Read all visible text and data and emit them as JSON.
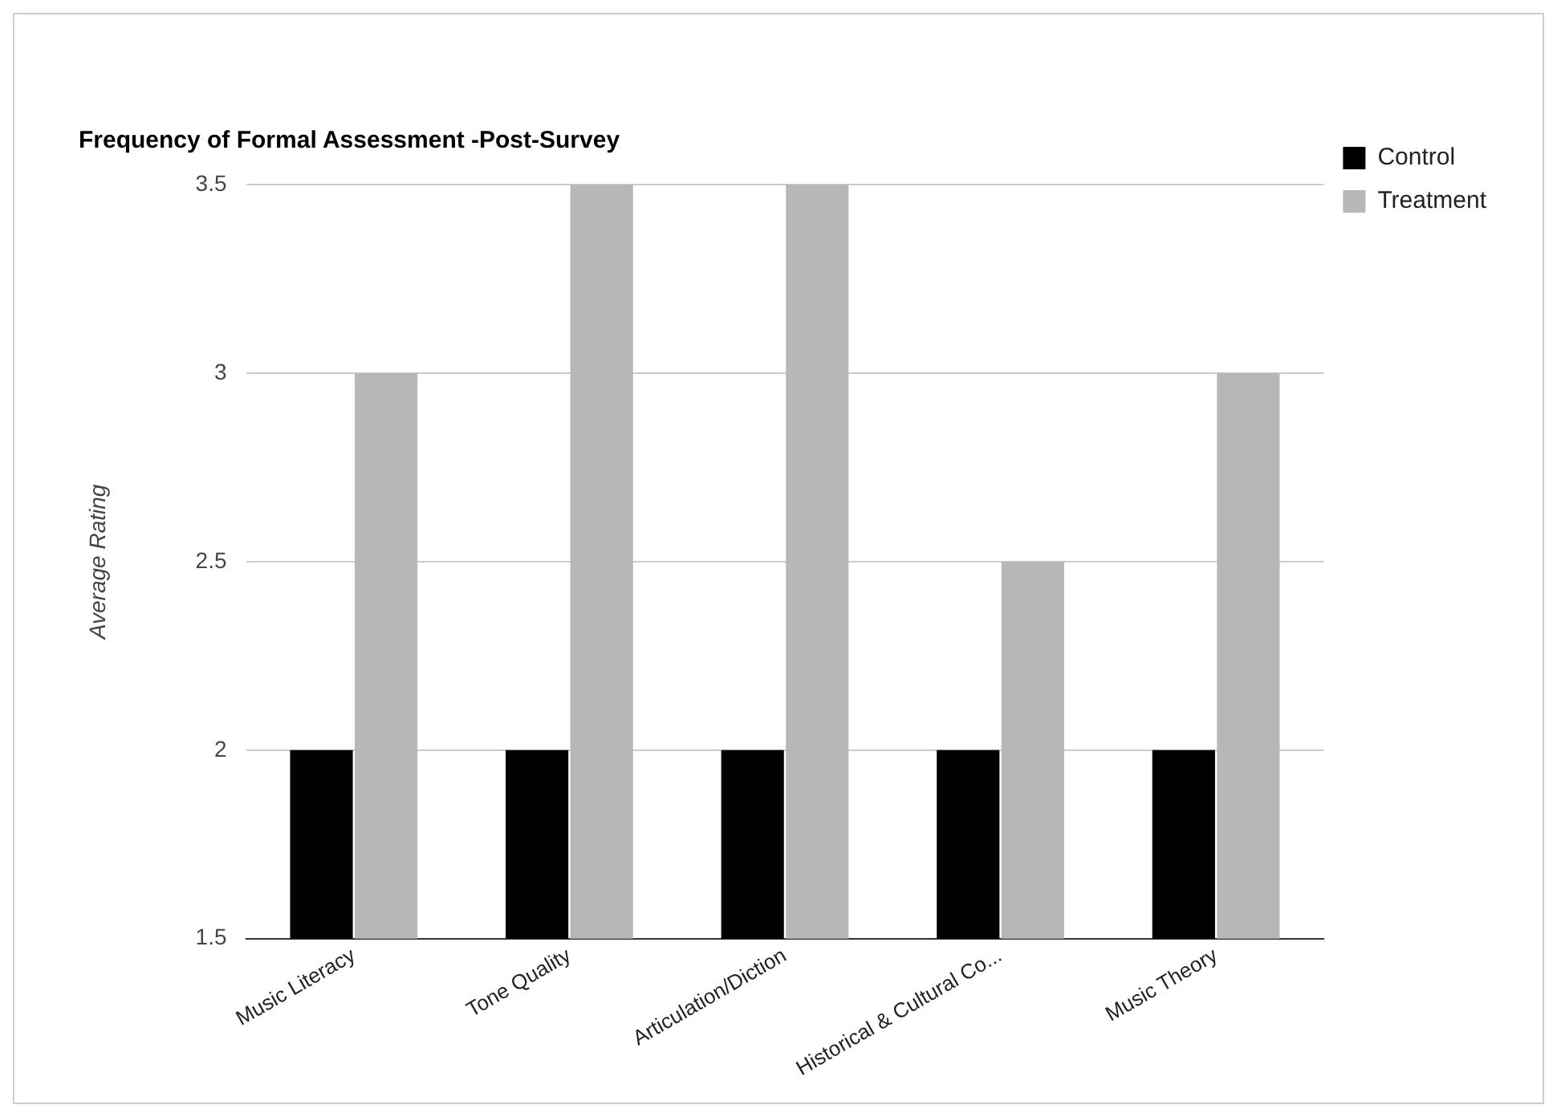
{
  "chart_data": {
    "type": "bar",
    "title": "Frequency of Formal Assessment -Post-Survey",
    "ylabel": "Average Rating",
    "categories": [
      "Music Literacy",
      "Tone Quality",
      "Articulation/Diction",
      "Historical & Cultural Co...",
      "Music Theory"
    ],
    "series": [
      {
        "name": "Control",
        "color": "#000000",
        "values": [
          2,
          2,
          2,
          2,
          2
        ]
      },
      {
        "name": "Treatment",
        "color": "#b7b7b7",
        "values": [
          3,
          3.5,
          3.5,
          2.5,
          3
        ]
      }
    ],
    "ylim": [
      1.5,
      3.5
    ],
    "yticks": [
      1.5,
      2,
      2.5,
      3,
      3.5
    ],
    "grid": "y",
    "legend": "right"
  }
}
